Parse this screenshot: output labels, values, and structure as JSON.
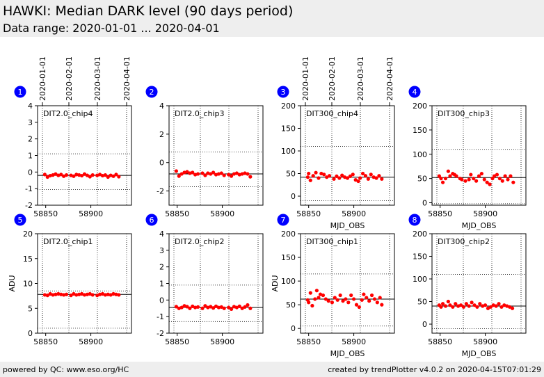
{
  "header": {
    "title": "HAWKI: Median DARK level (90 days period)",
    "subtitle": "Data range: 2020-01-01 ... 2020-04-01"
  },
  "footer": {
    "left": "powered by QC: www.eso.org/HC",
    "right": "created by trendPlotter v4.0.2 on 2020-04-15T07:01:29"
  },
  "colors": {
    "points": "#ff0000",
    "badge": "#0000ff",
    "header_bg": "#eeeeee"
  },
  "date_ticks": [
    "2020-01-01",
    "2020-02-01",
    "2020-03-01",
    "2020-04-01"
  ],
  "chart_data": [
    {
      "type": "scatter",
      "badge": "1",
      "label": "DIT2.0_chip4",
      "ylim": [
        -2,
        4
      ],
      "yticks": [
        -2,
        -1,
        0,
        1,
        2,
        3,
        4
      ],
      "xlim": [
        58841,
        58945
      ],
      "xticks": [
        58850,
        58900
      ],
      "xlabel": "",
      "ylabel": "",
      "median": -0.2,
      "hlines": [
        1.1,
        -1.05
      ],
      "x": [
        58849,
        58852,
        58855,
        58858,
        58861,
        58864,
        58867,
        58870,
        58873,
        58878,
        58881,
        58884,
        58887,
        58890,
        58893,
        58896,
        58899,
        58902,
        58907,
        58910,
        58913,
        58916,
        58919,
        58922,
        58925,
        58928,
        58931
      ],
      "y": [
        -0.15,
        -0.3,
        -0.22,
        -0.18,
        -0.12,
        -0.2,
        -0.15,
        -0.25,
        -0.18,
        -0.2,
        -0.25,
        -0.15,
        -0.18,
        -0.22,
        -0.12,
        -0.2,
        -0.28,
        -0.18,
        -0.2,
        -0.15,
        -0.22,
        -0.18,
        -0.3,
        -0.2,
        -0.25,
        -0.15,
        -0.28
      ]
    },
    {
      "type": "scatter",
      "badge": "2",
      "label": "DIT2.0_chip3",
      "ylim": [
        -3,
        4
      ],
      "yticks": [
        -2,
        0,
        2,
        4
      ],
      "xlim": [
        58841,
        58945
      ],
      "xticks": [
        58850,
        58900
      ],
      "xlabel": "",
      "ylabel": "",
      "median": -0.8,
      "hlines": [
        0.75,
        -1.7
      ],
      "x": [
        58849,
        58852,
        58855,
        58858,
        58861,
        58864,
        58867,
        58870,
        58873,
        58878,
        58881,
        58884,
        58887,
        58890,
        58893,
        58896,
        58899,
        58902,
        58907,
        58910,
        58913,
        58916,
        58919,
        58922,
        58925,
        58928,
        58931
      ],
      "y": [
        -0.6,
        -0.95,
        -0.8,
        -0.7,
        -0.65,
        -0.75,
        -0.7,
        -0.85,
        -0.8,
        -0.75,
        -0.9,
        -0.75,
        -0.8,
        -0.7,
        -0.85,
        -0.8,
        -0.75,
        -0.9,
        -0.85,
        -0.95,
        -0.8,
        -0.75,
        -0.85,
        -0.8,
        -0.75,
        -0.8,
        -1.0
      ]
    },
    {
      "type": "scatter",
      "badge": "3",
      "label": "DIT300_chip4",
      "ylim": [
        -20,
        200
      ],
      "yticks": [
        0,
        50,
        100,
        150,
        200
      ],
      "xlim": [
        58841,
        58945
      ],
      "xticks": [
        58850,
        58900
      ],
      "xlabel": "MJD_OBS",
      "ylabel": "",
      "median": 42,
      "hlines": [
        110,
        -10
      ],
      "x": [
        58849,
        58850,
        58852,
        58855,
        58858,
        58861,
        58864,
        58867,
        58870,
        58873,
        58878,
        58881,
        58884,
        58887,
        58890,
        58893,
        58896,
        58899,
        58902,
        58905,
        58907,
        58910,
        58913,
        58916,
        58919,
        58922,
        58925,
        58928,
        58931
      ],
      "y": [
        42,
        50,
        35,
        45,
        52,
        40,
        50,
        48,
        42,
        45,
        38,
        44,
        40,
        46,
        42,
        40,
        44,
        48,
        36,
        33,
        40,
        50,
        45,
        38,
        48,
        42,
        40,
        45,
        38
      ]
    },
    {
      "type": "scatter",
      "badge": "4",
      "label": "DIT300_chip3",
      "ylim": [
        -5,
        200
      ],
      "yticks": [
        0,
        50,
        100,
        150,
        200
      ],
      "xlim": [
        58841,
        58945
      ],
      "xticks": [
        58850,
        58900
      ],
      "xlabel": "MJD_OBS",
      "ylabel": "",
      "median": 52,
      "hlines": [
        110,
        -2
      ],
      "x": [
        58849,
        58851,
        58853,
        58856,
        58859,
        58861,
        58864,
        58866,
        58868,
        58872,
        58874,
        58878,
        58882,
        58884,
        58887,
        58890,
        58893,
        58896,
        58899,
        58902,
        58905,
        58908,
        58910,
        58913,
        58916,
        58919,
        58922,
        58925,
        58928,
        58931
      ],
      "y": [
        55,
        50,
        42,
        50,
        65,
        55,
        60,
        58,
        55,
        50,
        48,
        45,
        48,
        58,
        50,
        45,
        55,
        60,
        48,
        42,
        38,
        50,
        55,
        58,
        50,
        45,
        55,
        48,
        55,
        42
      ]
    },
    {
      "type": "scatter",
      "badge": "5",
      "label": "DIT2.0_chip1",
      "ylim": [
        0,
        20
      ],
      "yticks": [
        0,
        5,
        10,
        15,
        20
      ],
      "xlim": [
        58841,
        58945
      ],
      "xticks": [
        58850,
        58900
      ],
      "xlabel": "",
      "ylabel": "ADU",
      "median": 7.8,
      "hlines": [
        8.5,
        1.0
      ],
      "x": [
        58849,
        58852,
        58855,
        58858,
        58861,
        58864,
        58867,
        58870,
        58873,
        58878,
        58881,
        58884,
        58887,
        58890,
        58893,
        58896,
        58899,
        58902,
        58907,
        58910,
        58913,
        58916,
        58919,
        58922,
        58925,
        58928,
        58931
      ],
      "y": [
        7.7,
        7.6,
        7.9,
        7.7,
        7.8,
        7.9,
        7.8,
        7.7,
        7.8,
        7.6,
        7.9,
        7.7,
        7.8,
        7.9,
        7.7,
        7.8,
        7.9,
        7.7,
        7.6,
        7.8,
        7.9,
        7.7,
        7.8,
        7.7,
        7.9,
        7.8,
        7.7
      ]
    },
    {
      "type": "scatter",
      "badge": "6",
      "label": "DIT2.0_chip2",
      "ylim": [
        -2,
        4
      ],
      "yticks": [
        -2,
        -1,
        0,
        1,
        2,
        3,
        4
      ],
      "xlim": [
        58841,
        58945
      ],
      "xticks": [
        58850,
        58900
      ],
      "xlabel": "",
      "ylabel": "",
      "median": -0.45,
      "hlines": [
        0.9,
        -1.3
      ],
      "x": [
        58849,
        58852,
        58855,
        58858,
        58861,
        58864,
        58867,
        58870,
        58873,
        58878,
        58881,
        58884,
        58887,
        58890,
        58893,
        58896,
        58899,
        58902,
        58907,
        58910,
        58913,
        58916,
        58919,
        58922,
        58925,
        58928,
        58931
      ],
      "y": [
        -0.4,
        -0.5,
        -0.45,
        -0.35,
        -0.4,
        -0.5,
        -0.38,
        -0.45,
        -0.42,
        -0.5,
        -0.35,
        -0.45,
        -0.4,
        -0.48,
        -0.38,
        -0.45,
        -0.42,
        -0.5,
        -0.45,
        -0.55,
        -0.4,
        -0.45,
        -0.38,
        -0.5,
        -0.42,
        -0.3,
        -0.5
      ]
    },
    {
      "type": "scatter",
      "badge": "7",
      "label": "DIT300_chip1",
      "ylim": [
        -10,
        200
      ],
      "yticks": [
        0,
        50,
        100,
        150,
        200
      ],
      "xlim": [
        58841,
        58945
      ],
      "xticks": [
        58850,
        58900
      ],
      "xlabel": "MJD_OBS",
      "ylabel": "ADU",
      "median": 62,
      "hlines": [
        115,
        5
      ],
      "x": [
        58849,
        58850,
        58852,
        58854,
        58857,
        58859,
        58861,
        58863,
        58866,
        58869,
        58872,
        58876,
        58879,
        58882,
        58885,
        58888,
        58891,
        58894,
        58897,
        58900,
        58903,
        58906,
        58909,
        58911,
        58914,
        58917,
        58920,
        58923,
        58926,
        58929,
        58931
      ],
      "y": [
        60,
        55,
        75,
        48,
        62,
        80,
        65,
        72,
        70,
        62,
        58,
        55,
        65,
        60,
        70,
        58,
        62,
        55,
        70,
        62,
        50,
        45,
        60,
        72,
        65,
        58,
        70,
        62,
        55,
        65,
        50
      ]
    },
    {
      "type": "scatter",
      "badge": "8",
      "label": "DIT300_chip2",
      "ylim": [
        -20,
        200
      ],
      "yticks": [
        0,
        50,
        100,
        150,
        200
      ],
      "xlim": [
        58841,
        58945
      ],
      "xticks": [
        58850,
        58900
      ],
      "xlabel": "MJD_OBS",
      "ylabel": "",
      "median": 40,
      "hlines": [
        110,
        -10
      ],
      "x": [
        58849,
        58851,
        58853,
        58856,
        58859,
        58861,
        58864,
        58867,
        58870,
        58873,
        58876,
        58879,
        58882,
        58885,
        58888,
        58891,
        58894,
        58897,
        58900,
        58903,
        58906,
        58909,
        58912,
        58915,
        58918,
        58921,
        58924,
        58927,
        58930
      ],
      "y": [
        42,
        38,
        45,
        40,
        50,
        42,
        38,
        45,
        40,
        42,
        38,
        45,
        40,
        48,
        42,
        38,
        45,
        40,
        42,
        35,
        38,
        42,
        40,
        45,
        38,
        42,
        40,
        38,
        35
      ]
    }
  ]
}
